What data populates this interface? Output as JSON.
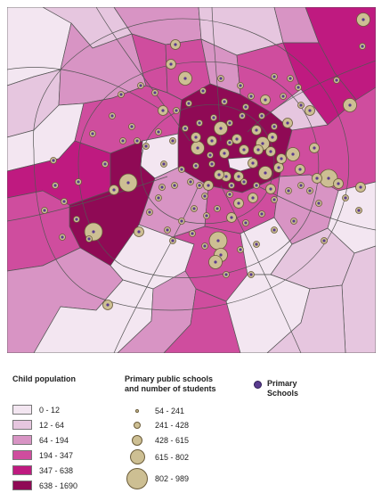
{
  "colors": {
    "class_1": "#f3e6f1",
    "class_2": "#e6c6df",
    "class_3": "#d894c4",
    "class_4": "#cf4d9e",
    "class_5": "#bf1a80",
    "class_6": "#8f0a55",
    "school_fill": "#cdbf93",
    "school_dot": "#5a3b8f"
  },
  "legend": {
    "child_population": {
      "title": "Child population",
      "classes": [
        "0 - 12",
        "12 - 64",
        "64 - 194",
        "194 - 347",
        "347 - 638",
        "638 - 1690"
      ]
    },
    "schools": {
      "title_line1": "Primary public schools",
      "title_line2": "and number of students",
      "classes": [
        "54 - 241",
        "241 - 428",
        "428 - 615",
        "615 - 802",
        "802 - 989"
      ]
    },
    "primary": {
      "label_line1": "Primary",
      "label_line2": "Schools"
    }
  }
}
